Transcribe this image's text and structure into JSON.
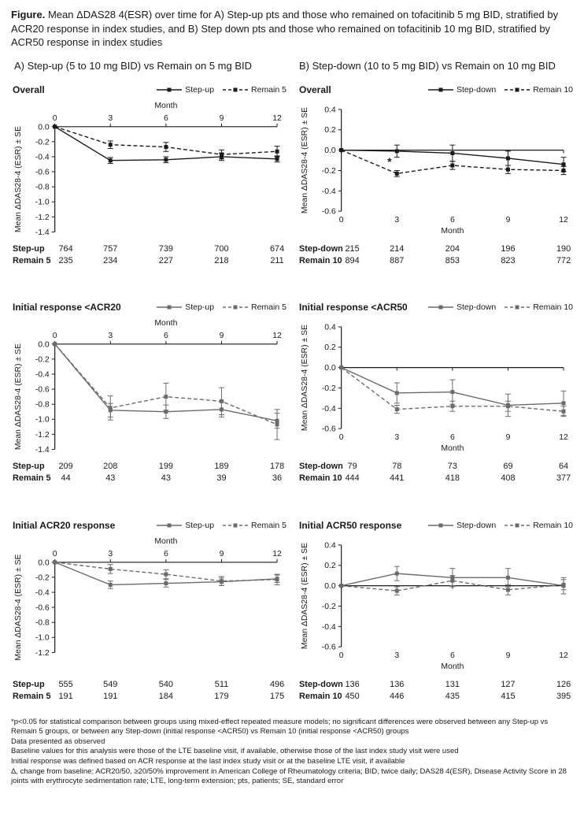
{
  "title": {
    "label": "Figure.",
    "text": " Mean ΔDAS28 4(ESR) over time for A) Step-up pts and those who remained on tofacitinib 5 mg BID, stratified by ACR20 response in index studies, and B) Step down pts and those who remained on tofacitinib 10 mg BID, stratified by ACR50 response in index studies"
  },
  "columns": [
    {
      "header": "A) Step-up (5 to 10 mg BID) vs Remain on 5 mg BID"
    },
    {
      "header": "B) Step-down (10 to 5 mg BID) vs Remain on 10 mg BID"
    }
  ],
  "chart_data": [
    {
      "type": "line",
      "panel_title": "Overall",
      "xlabel": "Month",
      "ylabel": "Mean ΔDAS28-4 (ESR) ± SE",
      "x": [
        0,
        3,
        6,
        9,
        12
      ],
      "ylim": [
        -1.4,
        0.0
      ],
      "yticks": [
        0.0,
        -0.2,
        -0.4,
        -0.6,
        -0.8,
        -1.0,
        -1.2,
        -1.4
      ],
      "x_axis_position": "top",
      "color": "#1a1a1a",
      "series": [
        {
          "name": "Step-up",
          "line": "solid",
          "values": [
            0,
            -0.45,
            -0.44,
            -0.4,
            -0.43
          ],
          "se": [
            0,
            0.04,
            0.04,
            0.05,
            0.04
          ]
        },
        {
          "name": "Remain 5",
          "line": "dashed",
          "values": [
            0,
            -0.24,
            -0.27,
            -0.37,
            -0.33
          ],
          "se": [
            0,
            0.05,
            0.06,
            0.06,
            0.07
          ]
        }
      ],
      "counts": [
        {
          "label": "Step-up",
          "values": [
            764,
            757,
            739,
            700,
            674
          ]
        },
        {
          "label": "Remain 5",
          "values": [
            235,
            234,
            227,
            218,
            211
          ]
        }
      ]
    },
    {
      "type": "line",
      "panel_title": "Overall",
      "xlabel": "Month",
      "ylabel": "Mean ΔDAS28-4 (ESR) ± SE",
      "x": [
        0,
        3,
        6,
        9,
        12
      ],
      "ylim": [
        -0.6,
        0.4
      ],
      "yticks": [
        0.4,
        0.2,
        0.0,
        -0.2,
        -0.4,
        -0.6
      ],
      "x_axis_position": "bottom",
      "color": "#1a1a1a",
      "series": [
        {
          "name": "Step-down",
          "line": "solid",
          "values": [
            0,
            -0.01,
            -0.03,
            -0.08,
            -0.14
          ],
          "se": [
            0,
            0.06,
            0.08,
            0.07,
            0.07
          ]
        },
        {
          "name": "Remain 10",
          "line": "dashed",
          "values": [
            0,
            -0.23,
            -0.15,
            -0.19,
            -0.2
          ],
          "se": [
            0,
            0.03,
            0.04,
            0.04,
            0.04
          ]
        }
      ],
      "annotations": [
        {
          "x": 2.6,
          "y": -0.12,
          "text": "*"
        }
      ],
      "counts": [
        {
          "label": "Step-down",
          "values": [
            215,
            214,
            204,
            196,
            190
          ]
        },
        {
          "label": "Remain 10",
          "values": [
            894,
            887,
            853,
            823,
            772
          ]
        }
      ]
    },
    {
      "type": "line",
      "panel_title": "Initial response <ACR20",
      "xlabel": "Month",
      "ylabel": "Mean ΔDAS28-4 (ESR) ± SE",
      "x": [
        0,
        3,
        6,
        9,
        12
      ],
      "ylim": [
        -1.4,
        0.0
      ],
      "yticks": [
        0.0,
        -0.2,
        -0.4,
        -0.6,
        -0.8,
        -1.0,
        -1.2,
        -1.4
      ],
      "x_axis_position": "top",
      "color": "#6b6b6b",
      "series": [
        {
          "name": "Step-up",
          "line": "solid",
          "values": [
            0,
            -0.88,
            -0.9,
            -0.87,
            -1.02
          ],
          "se": [
            0,
            0.09,
            0.09,
            0.1,
            0.1
          ]
        },
        {
          "name": "Remain 5",
          "line": "dashed",
          "values": [
            0,
            -0.85,
            -0.7,
            -0.76,
            -1.07
          ],
          "se": [
            0,
            0.16,
            0.18,
            0.18,
            0.2
          ]
        }
      ],
      "counts": [
        {
          "label": "Step-up",
          "values": [
            209,
            208,
            199,
            189,
            178
          ]
        },
        {
          "label": "Remain 5",
          "values": [
            44,
            43,
            43,
            39,
            36
          ]
        }
      ]
    },
    {
      "type": "line",
      "panel_title": "Initial response <ACR50",
      "xlabel": "Month",
      "ylabel": "Mean ΔDAS28-4 (ESR) ± SE",
      "x": [
        0,
        3,
        6,
        9,
        12
      ],
      "ylim": [
        -0.6,
        0.4
      ],
      "yticks": [
        0.4,
        0.2,
        0.0,
        -0.2,
        -0.4,
        -0.6
      ],
      "x_axis_position": "bottom",
      "color": "#6b6b6b",
      "series": [
        {
          "name": "Step-down",
          "line": "solid",
          "values": [
            0,
            -0.25,
            -0.24,
            -0.37,
            -0.35
          ],
          "se": [
            0,
            0.1,
            0.12,
            0.11,
            0.12
          ]
        },
        {
          "name": "Remain 10",
          "line": "dashed",
          "values": [
            0,
            -0.41,
            -0.38,
            -0.38,
            -0.43
          ],
          "se": [
            0,
            0.04,
            0.05,
            0.05,
            0.05
          ]
        }
      ],
      "counts": [
        {
          "label": "Step-down",
          "values": [
            79,
            78,
            73,
            69,
            64
          ]
        },
        {
          "label": "Remain 10",
          "values": [
            444,
            441,
            418,
            408,
            377
          ]
        }
      ]
    },
    {
      "type": "line",
      "panel_title": "Initial ACR20 response",
      "xlabel": "Month",
      "ylabel": "Mean ΔDAS28-4 (ESR) ± SE",
      "x": [
        0,
        3,
        6,
        9,
        12
      ],
      "ylim": [
        -1.2,
        0.0
      ],
      "yticks": [
        0.0,
        -0.2,
        -0.4,
        -0.6,
        -0.8,
        -1.0,
        -1.2
      ],
      "x_axis_position": "top",
      "color": "#6b6b6b",
      "series": [
        {
          "name": "Step-up",
          "line": "solid",
          "values": [
            0,
            -0.3,
            -0.28,
            -0.26,
            -0.22
          ],
          "se": [
            0,
            0.05,
            0.05,
            0.05,
            0.05
          ]
        },
        {
          "name": "Remain 5",
          "line": "dashed",
          "values": [
            0,
            -0.09,
            -0.16,
            -0.25,
            -0.23
          ],
          "se": [
            0,
            0.06,
            0.06,
            0.06,
            0.07
          ]
        }
      ],
      "counts": [
        {
          "label": "Step-up",
          "values": [
            555,
            549,
            540,
            511,
            496
          ]
        },
        {
          "label": "Remain 5",
          "values": [
            191,
            191,
            184,
            179,
            175
          ]
        }
      ]
    },
    {
      "type": "line",
      "panel_title": "Initial ACR50 response",
      "xlabel": "Month",
      "ylabel": "Mean ΔDAS28-4 (ESR) ± SE",
      "x": [
        0,
        3,
        6,
        9,
        12
      ],
      "ylim": [
        -0.6,
        0.4
      ],
      "yticks": [
        0.4,
        0.2,
        0.0,
        -0.2,
        -0.4,
        -0.6
      ],
      "x_axis_position": "bottom",
      "color": "#6b6b6b",
      "series": [
        {
          "name": "Step-down",
          "line": "solid",
          "values": [
            0,
            0.12,
            0.08,
            0.08,
            0.0
          ],
          "se": [
            0,
            0.07,
            0.09,
            0.09,
            0.08
          ]
        },
        {
          "name": "Remain 10",
          "line": "dashed",
          "values": [
            0,
            -0.05,
            0.05,
            -0.04,
            0.01
          ],
          "se": [
            0,
            0.04,
            0.05,
            0.05,
            0.05
          ]
        }
      ],
      "counts": [
        {
          "label": "Step-down",
          "values": [
            136,
            136,
            131,
            127,
            126
          ]
        },
        {
          "label": "Remain 10",
          "values": [
            450,
            446,
            435,
            415,
            395
          ]
        }
      ]
    }
  ],
  "footnotes": [
    "*p<0.05 for statistical comparison between groups using mixed-effect repeated measure models; no significant differences were observed between any Step-up vs Remain 5 groups, or between any Step-down (initial response <ACR50) vs Remain 10 (initial response <ACR50) groups",
    "Data presented as observed",
    "Baseline values for this analysis were those of the LTE baseline visit, if available, otherwise those of the last index study visit were used",
    "Initial response was defined based on ACR response at the last index study visit or at the baseline LTE visit, if available",
    "Δ, change from baseline; ACR20/50, ≥20/50% improvement in American College of Rheumatology criteria; BID, twice daily; DAS28 4(ESR), Disease Activity Score in 28 joints with erythrocyte sedimentation rate; LTE, long-term extension; pts, patients; SE, standard error"
  ]
}
